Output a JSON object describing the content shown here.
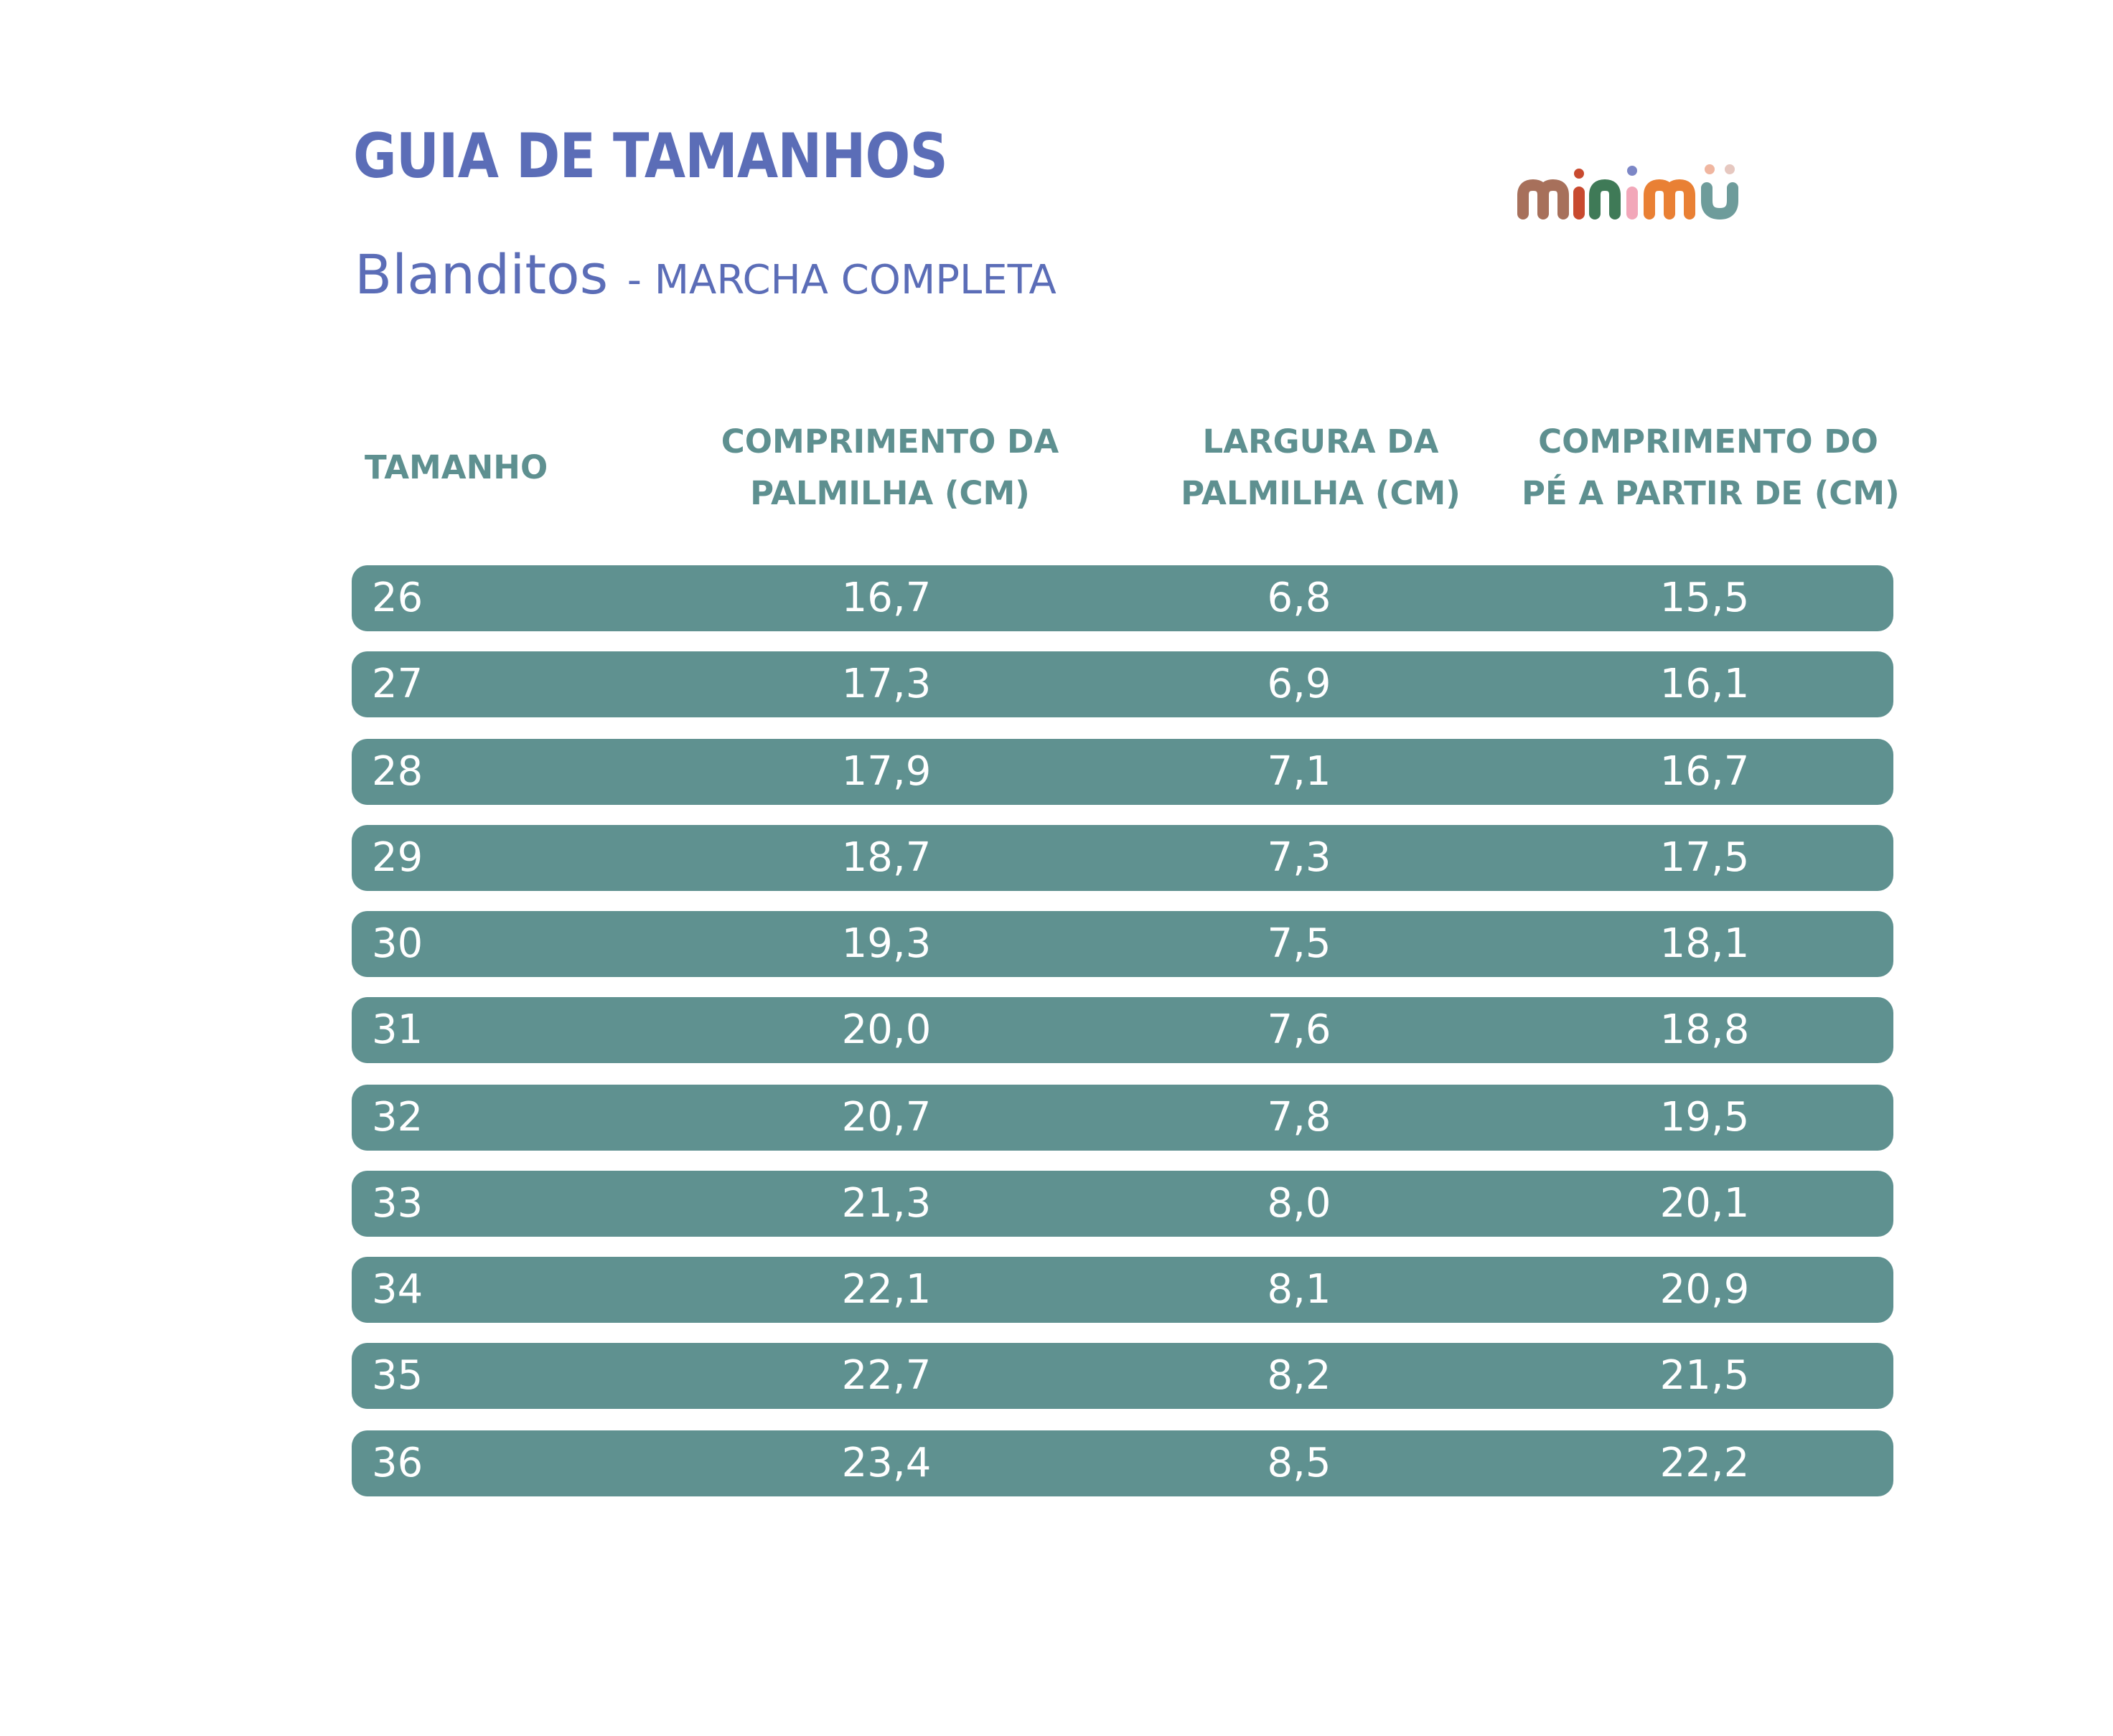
{
  "header": {
    "title": "GUIA DE TAMANHOS",
    "subtitle_main": "Blanditos",
    "subtitle_sep": "- MARCHA COMPLETA"
  },
  "brand": {
    "logo_text": "minimu",
    "colors": [
      "#a7705b",
      "#c84a2f",
      "#3f7a57",
      "#f2a7b9",
      "#7c87c6",
      "#e98034",
      "#6e9c9b"
    ]
  },
  "table": {
    "headers": [
      {
        "line1": "TAMANHO",
        "line2": ""
      },
      {
        "line1": "COMPRIMENTO DA",
        "line2": "PALMILHA (CM)"
      },
      {
        "line1": "LARGURA DA",
        "line2": "PALMILHA (CM)"
      },
      {
        "line1": "COMPRIMENTO DO",
        "line2": "PÉ A PARTIR DE (CM)"
      }
    ],
    "rows": [
      {
        "size": "26",
        "insole_length": "16,7",
        "insole_width": "6,8",
        "foot_length": "15,5"
      },
      {
        "size": "27",
        "insole_length": "17,3",
        "insole_width": "6,9",
        "foot_length": "16,1"
      },
      {
        "size": "28",
        "insole_length": "17,9",
        "insole_width": "7,1",
        "foot_length": "16,7"
      },
      {
        "size": "29",
        "insole_length": "18,7",
        "insole_width": "7,3",
        "foot_length": "17,5"
      },
      {
        "size": "30",
        "insole_length": "19,3",
        "insole_width": "7,5",
        "foot_length": "18,1"
      },
      {
        "size": "31",
        "insole_length": "20,0",
        "insole_width": "7,6",
        "foot_length": "18,8"
      },
      {
        "size": "32",
        "insole_length": "20,7",
        "insole_width": "7,8",
        "foot_length": "19,5"
      },
      {
        "size": "33",
        "insole_length": "21,3",
        "insole_width": "8,0",
        "foot_length": "20,1"
      },
      {
        "size": "34",
        "insole_length": "22,1",
        "insole_width": "8,1",
        "foot_length": "20,9"
      },
      {
        "size": "35",
        "insole_length": "22,7",
        "insole_width": "8,2",
        "foot_length": "21,5"
      },
      {
        "size": "36",
        "insole_length": "23,4",
        "insole_width": "8,5",
        "foot_length": "22,2"
      }
    ]
  },
  "colors": {
    "title": "#5b6db7",
    "header_text": "#5e9090",
    "row_background": "#5f9190",
    "row_text": "#ffffff"
  }
}
